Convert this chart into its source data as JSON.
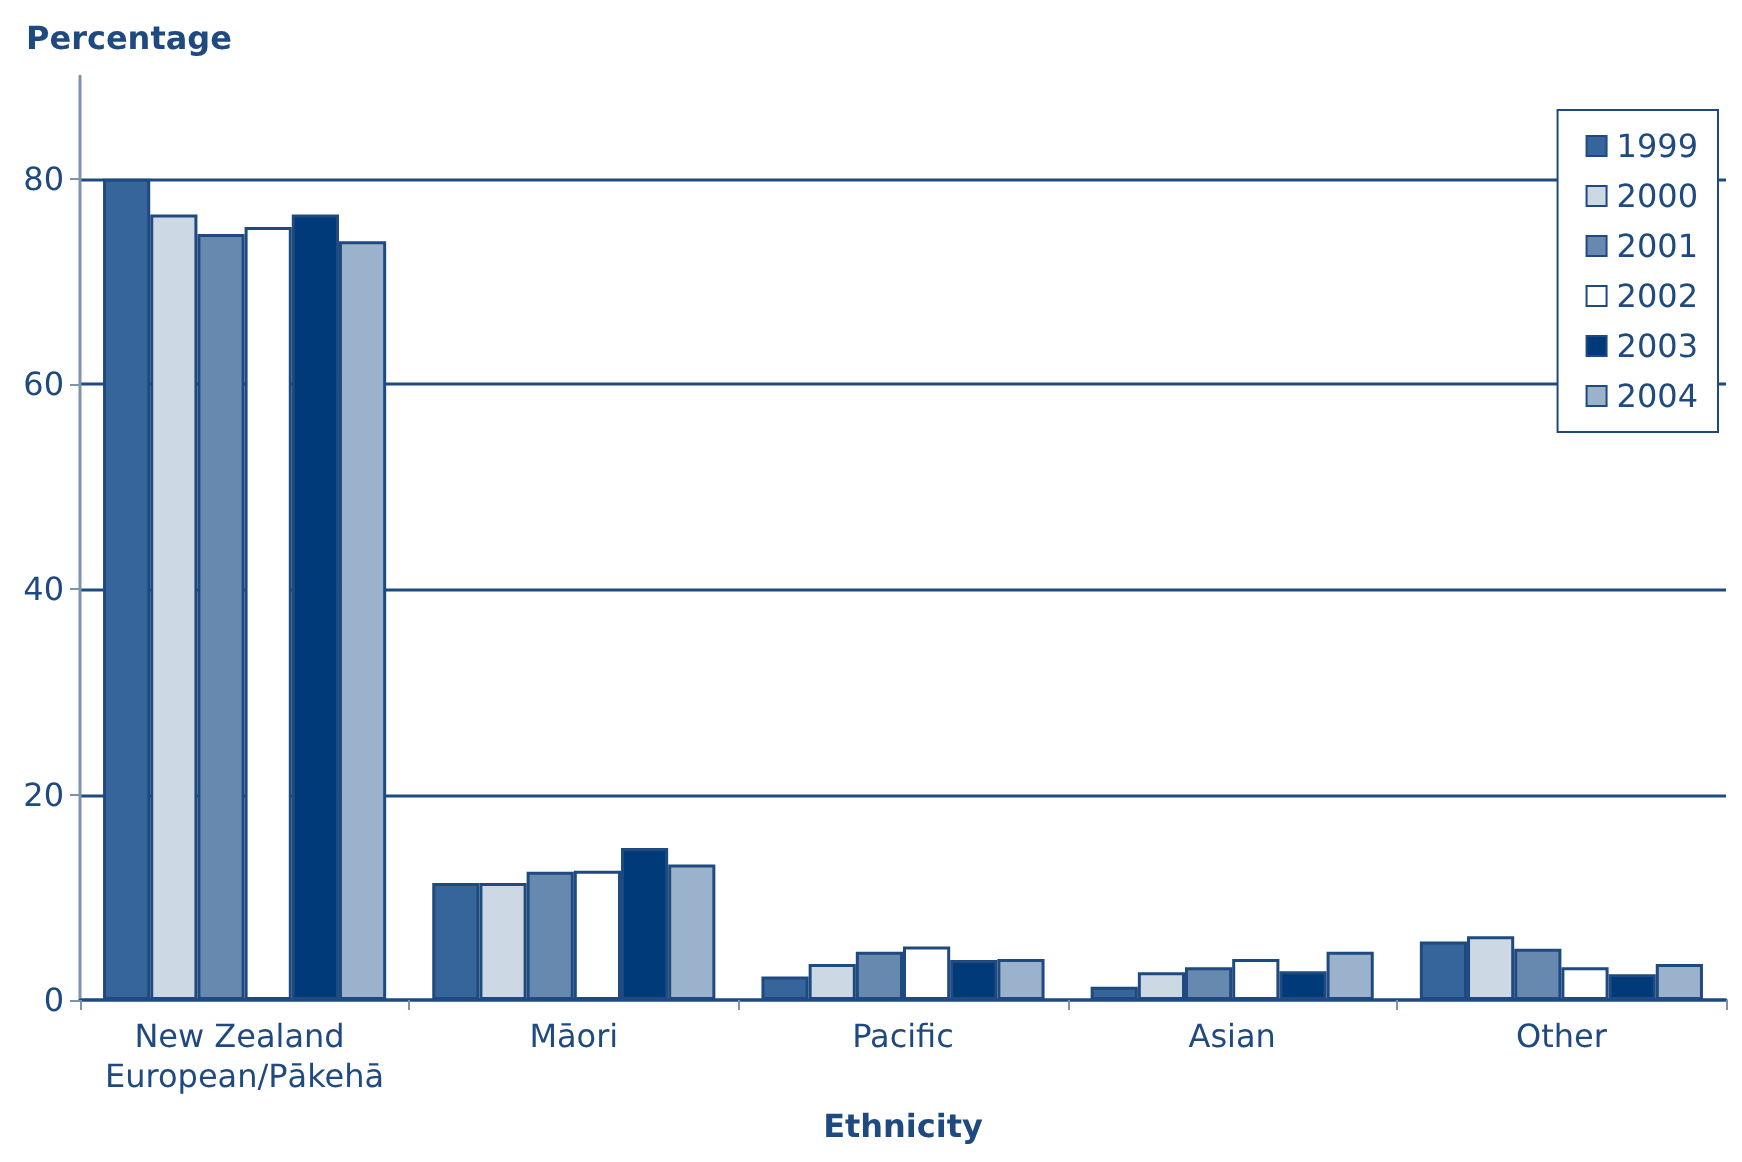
{
  "chart_data": {
    "type": "bar",
    "ylabel": "Percentage",
    "xlabel": "Ethnicity",
    "categories": [
      "New Zealand European/Pākehā",
      "Māori",
      "Pacific",
      "Asian",
      "Other"
    ],
    "series": [
      {
        "name": "1999",
        "color": "#35659a",
        "values": [
          80,
          11.4,
          2.3,
          1.3,
          5.7
        ]
      },
      {
        "name": "2000",
        "color": "#ccd9e5",
        "values": [
          76.5,
          11.4,
          3.5,
          2.7,
          6.2
        ]
      },
      {
        "name": "2001",
        "color": "#6789b0",
        "values": [
          74.6,
          12.5,
          4.7,
          3.2,
          5.0
        ]
      },
      {
        "name": "2002",
        "color": "#ffffff",
        "values": [
          75.3,
          12.6,
          5.2,
          4.0,
          3.2
        ]
      },
      {
        "name": "2003",
        "color": "#003a78",
        "values": [
          76.5,
          14.8,
          3.9,
          2.8,
          2.5
        ]
      },
      {
        "name": "2004",
        "color": "#9ab2cb",
        "values": [
          73.9,
          13.2,
          4.0,
          4.7,
          3.5
        ]
      }
    ],
    "ylim": [
      0,
      90
    ],
    "yticks": [
      0,
      20,
      40,
      60,
      80
    ],
    "grid": "y",
    "legend": "top right"
  }
}
